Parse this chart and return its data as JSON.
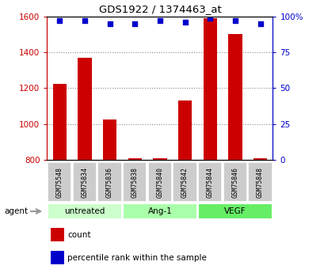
{
  "title": "GDS1922 / 1374463_at",
  "samples": [
    "GSM75548",
    "GSM75834",
    "GSM75836",
    "GSM75838",
    "GSM75840",
    "GSM75842",
    "GSM75844",
    "GSM75846",
    "GSM75848"
  ],
  "counts": [
    1225,
    1370,
    1025,
    810,
    810,
    1130,
    1590,
    1500,
    810
  ],
  "percentile_ranks": [
    97,
    97,
    95,
    95,
    97,
    96,
    99,
    97,
    95
  ],
  "groups": [
    {
      "label": "untreated",
      "samples": [
        0,
        1,
        2
      ],
      "color": "#ccffcc"
    },
    {
      "label": "Ang-1",
      "samples": [
        3,
        4,
        5
      ],
      "color": "#aaffaa"
    },
    {
      "label": "VEGF",
      "samples": [
        6,
        7,
        8
      ],
      "color": "#66ee66"
    }
  ],
  "ylim_left": [
    800,
    1600
  ],
  "ylim_right": [
    0,
    100
  ],
  "yticks_left": [
    800,
    1000,
    1200,
    1400,
    1600
  ],
  "yticks_right": [
    0,
    25,
    50,
    75,
    100
  ],
  "bar_color": "#cc0000",
  "dot_color": "#0000cc",
  "grid_color": "#888888",
  "bg_color": "#ffffff",
  "sample_box_color": "#cccccc",
  "agent_label": "agent",
  "legend_count": "count",
  "legend_percentile": "percentile rank within the sample",
  "right_top_label": "100%"
}
